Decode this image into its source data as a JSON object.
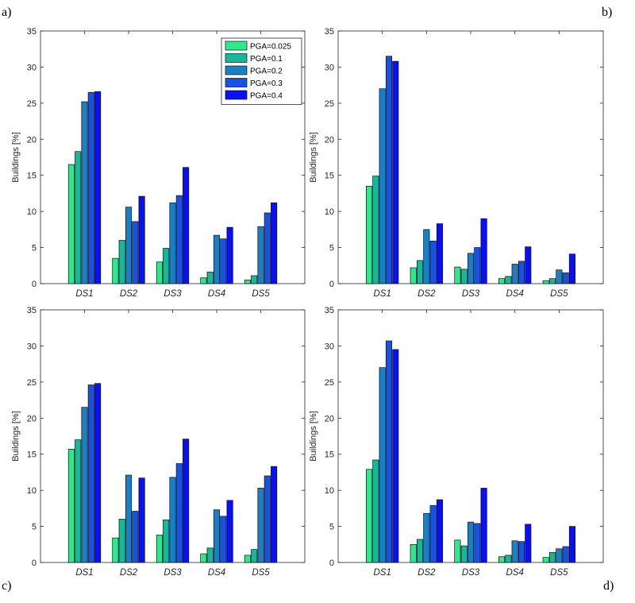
{
  "panel_letters": [
    "a)",
    "b)",
    "c)",
    "d)"
  ],
  "legend": {
    "entries": [
      "PGA=0.025",
      "PGA=0.1",
      "PGA=0.2",
      "PGA=0.3",
      "PGA=0.4"
    ],
    "placement": "top-right",
    "panel": "a"
  },
  "series_colors": [
    "#2ee88c",
    "#17b89a",
    "#1a7fc4",
    "#1a52e0",
    "#0a10f2"
  ],
  "chart_data": [
    {
      "panel": "a",
      "type": "bar",
      "categories": [
        "DS1",
        "DS2",
        "DS3",
        "DS4",
        "DS5"
      ],
      "ylabel": "Buildings [%]",
      "ylim": [
        0,
        35
      ],
      "yticks": [
        0,
        5,
        10,
        15,
        20,
        25,
        30,
        35
      ],
      "grid": false,
      "series": [
        {
          "name": "PGA=0.025",
          "values": [
            16.5,
            3.5,
            3.0,
            0.8,
            0.5
          ]
        },
        {
          "name": "PGA=0.1",
          "values": [
            18.3,
            6.0,
            4.9,
            1.6,
            1.1
          ]
        },
        {
          "name": "PGA=0.2",
          "values": [
            25.2,
            10.6,
            11.2,
            6.7,
            7.9
          ]
        },
        {
          "name": "PGA=0.3",
          "values": [
            26.5,
            8.6,
            12.2,
            6.2,
            9.8
          ]
        },
        {
          "name": "PGA=0.4",
          "values": [
            26.6,
            12.1,
            16.1,
            7.8,
            11.2
          ]
        }
      ]
    },
    {
      "panel": "b",
      "type": "bar",
      "categories": [
        "DS1",
        "DS2",
        "DS3",
        "DS4",
        "DS5"
      ],
      "ylabel": "Buildings [%]",
      "ylim": [
        0,
        35
      ],
      "yticks": [
        0,
        5,
        10,
        15,
        20,
        25,
        30,
        35
      ],
      "grid": false,
      "series": [
        {
          "name": "PGA=0.025",
          "values": [
            13.5,
            2.2,
            2.3,
            0.7,
            0.4
          ]
        },
        {
          "name": "PGA=0.1",
          "values": [
            14.9,
            3.2,
            2.0,
            1.0,
            0.7
          ]
        },
        {
          "name": "PGA=0.2",
          "values": [
            27.0,
            7.5,
            4.2,
            2.7,
            1.9
          ]
        },
        {
          "name": "PGA=0.3",
          "values": [
            31.5,
            5.9,
            5.0,
            3.1,
            1.5
          ]
        },
        {
          "name": "PGA=0.4",
          "values": [
            30.8,
            8.3,
            9.0,
            5.1,
            4.1
          ]
        }
      ]
    },
    {
      "panel": "c",
      "type": "bar",
      "categories": [
        "DS1",
        "DS2",
        "DS3",
        "DS4",
        "DS5"
      ],
      "ylabel": "Buildings [%]",
      "ylim": [
        0,
        35
      ],
      "yticks": [
        0,
        5,
        10,
        15,
        20,
        25,
        30,
        35
      ],
      "grid": false,
      "series": [
        {
          "name": "PGA=0.025",
          "values": [
            15.7,
            3.4,
            3.8,
            1.2,
            1.0
          ]
        },
        {
          "name": "PGA=0.1",
          "values": [
            17.0,
            6.0,
            5.9,
            2.0,
            1.8
          ]
        },
        {
          "name": "PGA=0.2",
          "values": [
            21.5,
            12.1,
            11.8,
            7.3,
            10.3
          ]
        },
        {
          "name": "PGA=0.3",
          "values": [
            24.6,
            7.1,
            13.7,
            6.4,
            12.0
          ]
        },
        {
          "name": "PGA=0.4",
          "values": [
            24.8,
            11.7,
            17.1,
            8.6,
            13.3
          ]
        }
      ]
    },
    {
      "panel": "d",
      "type": "bar",
      "categories": [
        "DS1",
        "DS2",
        "DS3",
        "DS4",
        "DS5"
      ],
      "ylabel": "Buildings [%]",
      "ylim": [
        0,
        35
      ],
      "yticks": [
        0,
        5,
        10,
        15,
        20,
        25,
        30,
        35
      ],
      "grid": false,
      "series": [
        {
          "name": "PGA=0.025",
          "values": [
            12.9,
            2.5,
            3.1,
            0.8,
            0.7
          ]
        },
        {
          "name": "PGA=0.1",
          "values": [
            14.2,
            3.2,
            2.3,
            1.0,
            1.4
          ]
        },
        {
          "name": "PGA=0.2",
          "values": [
            27.0,
            6.8,
            5.6,
            3.0,
            1.9
          ]
        },
        {
          "name": "PGA=0.3",
          "values": [
            30.7,
            7.9,
            5.4,
            2.9,
            2.2
          ]
        },
        {
          "name": "PGA=0.4",
          "values": [
            29.5,
            8.7,
            10.3,
            5.3,
            5.0
          ]
        }
      ]
    }
  ]
}
